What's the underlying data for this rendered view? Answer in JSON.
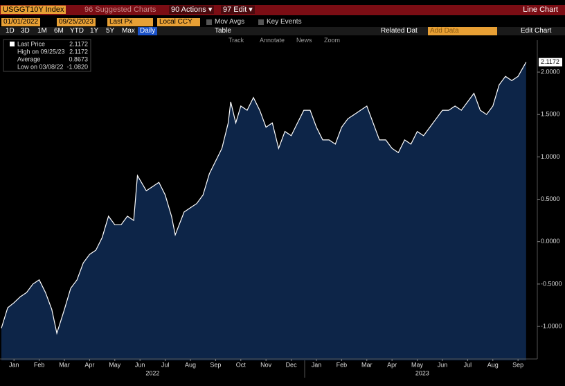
{
  "header": {
    "ticker": "USGGT10Y Index",
    "suggested": "96 Suggested Charts",
    "actions": "90 Actions ▾",
    "edit": "97 Edit ▾",
    "chart_type": "Line Chart"
  },
  "controls": {
    "start_date": "01/01/2022",
    "end_date": "09/25/2023",
    "field": "Last Px",
    "currency": "Local CCY",
    "mov_avgs": "Mov Avgs",
    "key_events": "Key Events",
    "periods": [
      "1D",
      "3D",
      "1M",
      "6M",
      "YTD",
      "1Y",
      "5Y",
      "Max"
    ],
    "frequency": "Daily",
    "table": "Table",
    "related": "Related Dat",
    "add_data": "Add Data",
    "edit_chart": "Edit Chart",
    "tools": [
      "Track",
      "Annotate",
      "News",
      "Zoom"
    ]
  },
  "legend": [
    {
      "label": "Last Price",
      "value": "2.1172"
    },
    {
      "label": "High on 09/25/23",
      "value": "2.1172"
    },
    {
      "label": "Average",
      "value": "0.8673"
    },
    {
      "label": "Low on 03/08/22",
      "value": "-1.0820"
    }
  ],
  "chart_data": {
    "type": "line",
    "color": "#ffffff",
    "fill": "#0d2548",
    "x": [
      0,
      0.25,
      0.5,
      0.75,
      1,
      1.25,
      1.5,
      1.75,
      2,
      2.2,
      2.5,
      2.75,
      3,
      3.25,
      3.5,
      3.75,
      4,
      4.25,
      4.5,
      4.75,
      5,
      5.25,
      5.4,
      5.75,
      6,
      6.25,
      6.5,
      6.75,
      6.9,
      7.25,
      7.5,
      7.75,
      8,
      8.25,
      8.5,
      8.75,
      9,
      9.1,
      9.3,
      9.5,
      9.75,
      10,
      10.25,
      10.5,
      10.75,
      11,
      11.25,
      11.5,
      11.75,
      12,
      12.25,
      12.5,
      12.75,
      13,
      13.25,
      13.5,
      13.75,
      14,
      14.25,
      14.5,
      14.75,
      15,
      15.25,
      15.5,
      15.75,
      16,
      16.25,
      16.5,
      16.75,
      17,
      17.25,
      17.5,
      17.75,
      18,
      18.25,
      18.5,
      18.75,
      19,
      19.25,
      19.5,
      19.75,
      20,
      20.25,
      20.5,
      20.82
    ],
    "values": [
      -1.02,
      -0.78,
      -0.72,
      -0.65,
      -0.6,
      -0.5,
      -0.45,
      -0.6,
      -0.8,
      -1.08,
      -0.8,
      -0.55,
      -0.45,
      -0.25,
      -0.15,
      -0.1,
      0.05,
      0.3,
      0.2,
      0.2,
      0.3,
      0.25,
      0.78,
      0.6,
      0.65,
      0.7,
      0.55,
      0.3,
      0.08,
      0.35,
      0.4,
      0.45,
      0.55,
      0.8,
      0.95,
      1.1,
      1.4,
      1.65,
      1.4,
      1.6,
      1.55,
      1.7,
      1.55,
      1.35,
      1.4,
      1.1,
      1.3,
      1.25,
      1.4,
      1.55,
      1.55,
      1.35,
      1.2,
      1.2,
      1.15,
      1.35,
      1.45,
      1.5,
      1.55,
      1.6,
      1.4,
      1.2,
      1.2,
      1.1,
      1.05,
      1.2,
      1.15,
      1.3,
      1.25,
      1.35,
      1.45,
      1.55,
      1.55,
      1.6,
      1.55,
      1.65,
      1.75,
      1.55,
      1.5,
      1.6,
      1.85,
      1.95,
      1.9,
      1.95,
      2.1172
    ],
    "xlim": [
      0,
      21.1
    ],
    "xticks": [
      {
        "value": 0.5,
        "label": "Jan"
      },
      {
        "value": 1.5,
        "label": "Feb"
      },
      {
        "value": 2.5,
        "label": "Mar"
      },
      {
        "value": 3.5,
        "label": "Apr"
      },
      {
        "value": 4.5,
        "label": "May"
      },
      {
        "value": 5.5,
        "label": "Jun"
      },
      {
        "value": 6.5,
        "label": "Jul"
      },
      {
        "value": 7.5,
        "label": "Aug"
      },
      {
        "value": 8.5,
        "label": "Sep"
      },
      {
        "value": 9.5,
        "label": "Oct"
      },
      {
        "value": 10.5,
        "label": "Nov"
      },
      {
        "value": 11.5,
        "label": "Dec"
      },
      {
        "value": 12.5,
        "label": "Jan"
      },
      {
        "value": 13.5,
        "label": "Feb"
      },
      {
        "value": 14.5,
        "label": "Mar"
      },
      {
        "value": 15.5,
        "label": "Apr"
      },
      {
        "value": 16.5,
        "label": "May"
      },
      {
        "value": 17.5,
        "label": "Jun"
      },
      {
        "value": 18.5,
        "label": "Jul"
      },
      {
        "value": 19.5,
        "label": "Aug"
      },
      {
        "value": 20.5,
        "label": "Sep"
      }
    ],
    "year_labels": [
      {
        "value": 6,
        "label": "2022"
      },
      {
        "value": 16.7,
        "label": "2023"
      }
    ],
    "ylim": [
      -1.4,
      2.36
    ],
    "yticks": [
      {
        "value": -1,
        "label": "-1.0000"
      },
      {
        "value": -0.5,
        "label": "-0.5000"
      },
      {
        "value": 0,
        "label": "0.0000"
      },
      {
        "value": 0.5,
        "label": "0.5000"
      },
      {
        "value": 1,
        "label": "1.0000"
      },
      {
        "value": 1.5,
        "label": "1.5000"
      },
      {
        "value": 2,
        "label": "2.0000"
      }
    ],
    "last_value_label": "2.1172",
    "grid": false
  }
}
